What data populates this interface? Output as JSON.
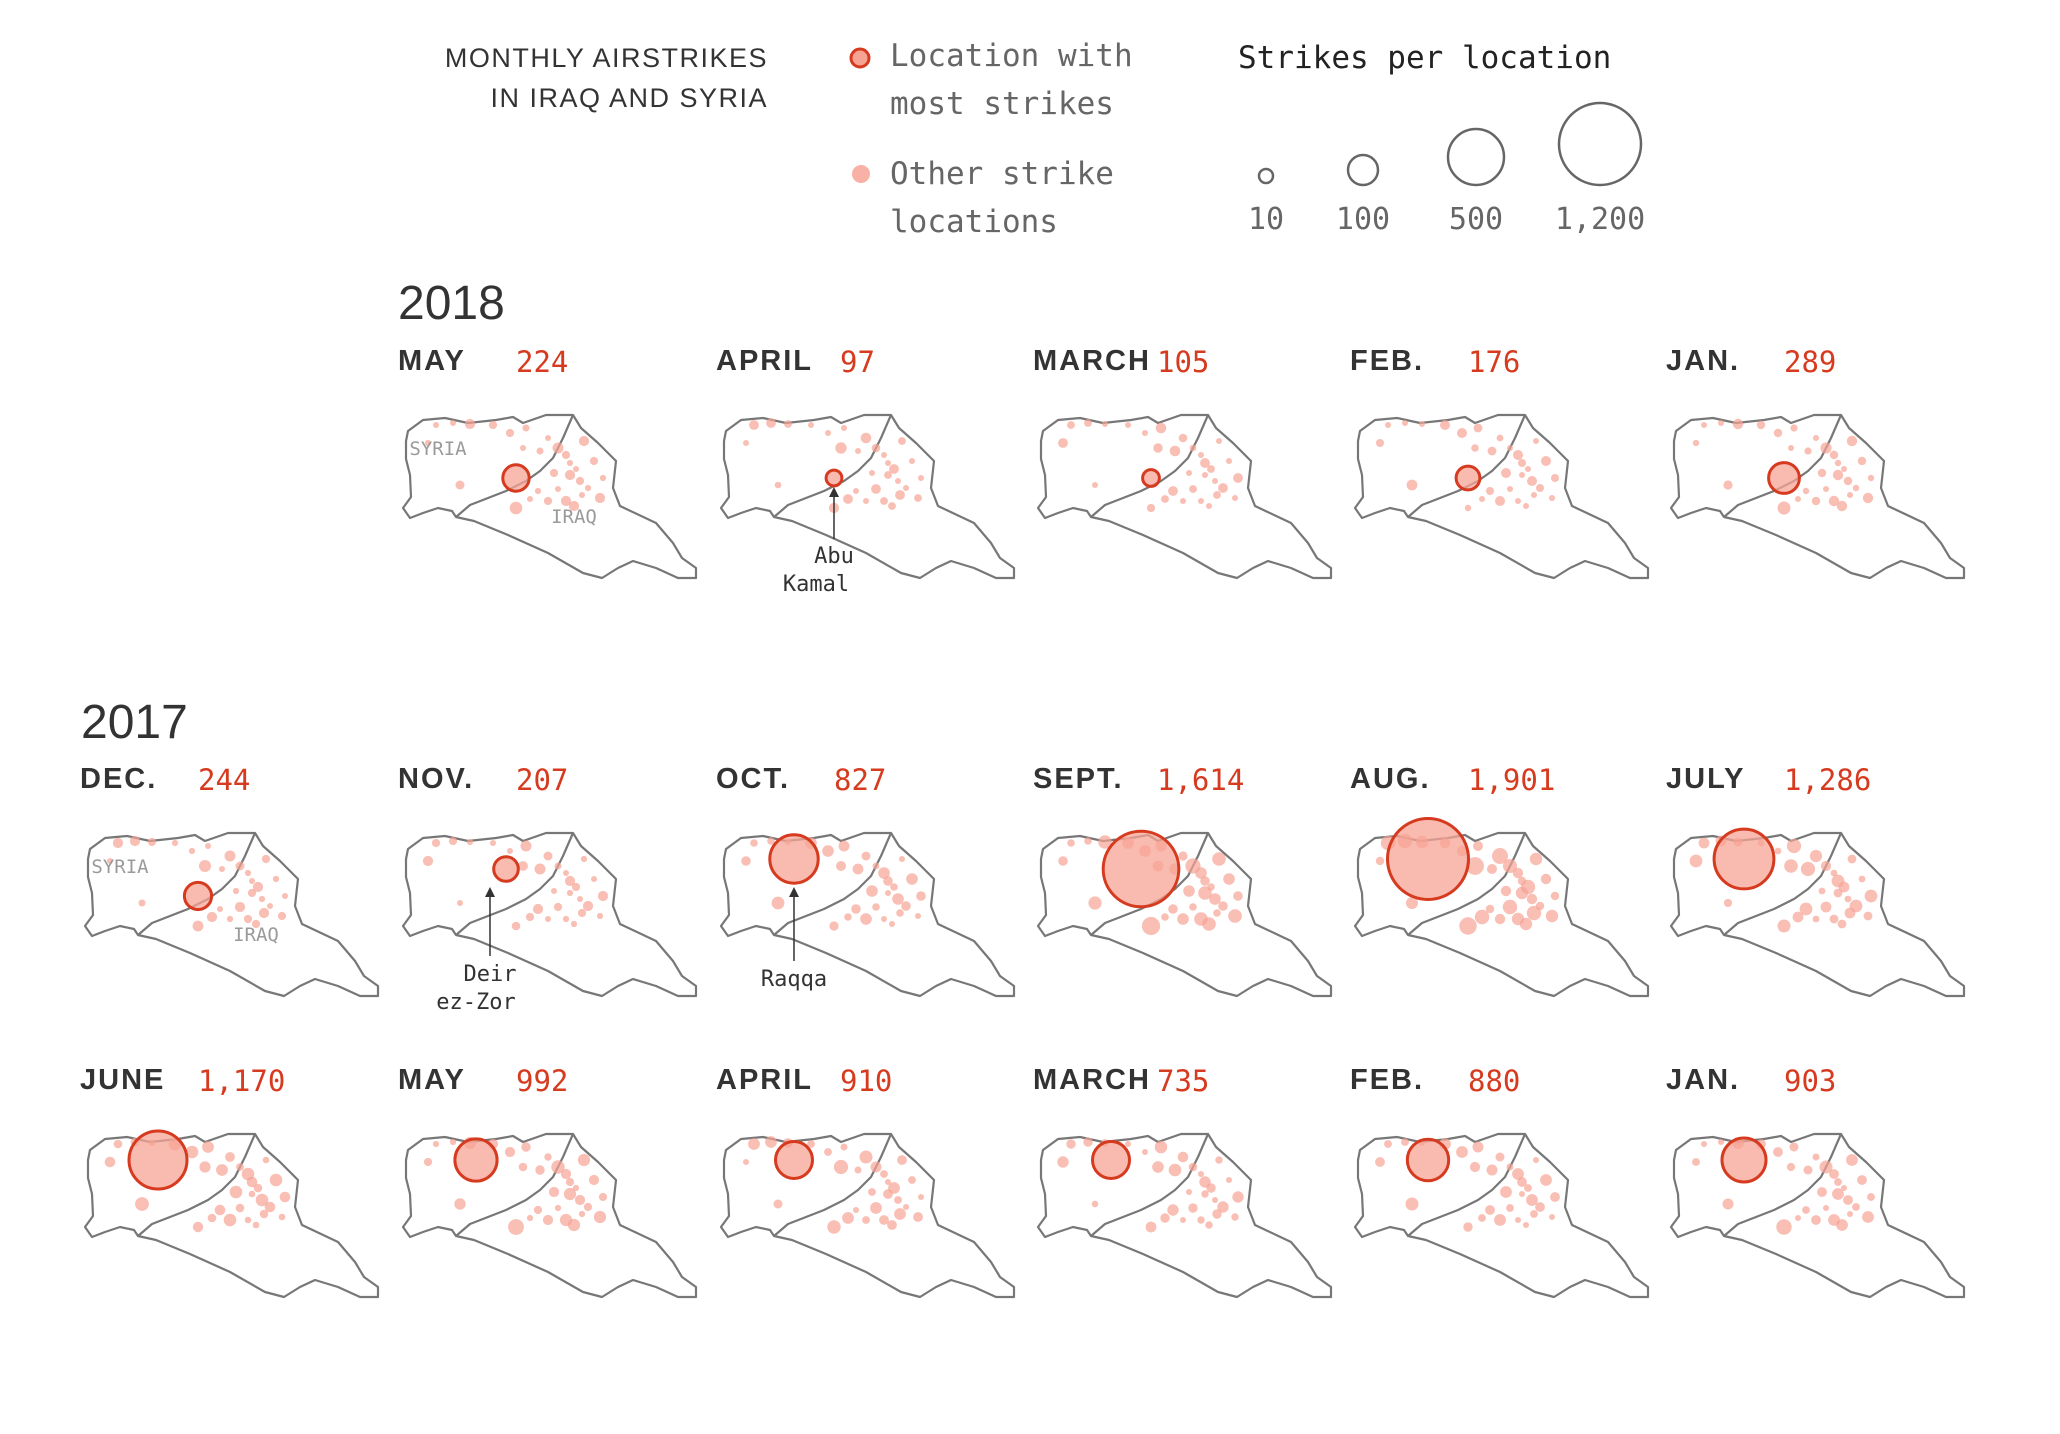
{
  "header": {
    "title_line1": "MONTHLY AIRSTRIKES",
    "title_line2": "IN IRAQ AND SYRIA"
  },
  "legend": {
    "most_line1": "Location with",
    "most_line2": "most strikes",
    "other_line1": "Other strike",
    "other_line2": "locations",
    "size_title": "Strikes per location",
    "sizes": [
      "10",
      "100",
      "500",
      "1,200"
    ]
  },
  "colors": {
    "accent": "#d63a1f",
    "bubble": "#f7a394",
    "outline": "#777777"
  },
  "labels": {
    "syria": "SYRIA",
    "iraq": "IRAQ"
  },
  "annotations": {
    "abu_kamal_1": "Abu",
    "abu_kamal_2": "Kamal",
    "deir_1": "Deir",
    "deir_2": "ez-Zor",
    "raqqa": "Raqqa"
  },
  "years": {
    "y2018": "2018",
    "y2017": "2017"
  },
  "months": [
    {
      "label": "MAY",
      "count": "224",
      "max_loc": "abu_kamal",
      "max_r": 0.3
    },
    {
      "label": "APRIL",
      "count": "97",
      "max_loc": "abu_kamal",
      "max_r": 0.18
    },
    {
      "label": "MARCH",
      "count": "105",
      "max_loc": "abu_kamal",
      "max_r": 0.19
    },
    {
      "label": "FEB.",
      "count": "176",
      "max_loc": "abu_kamal",
      "max_r": 0.27
    },
    {
      "label": "JAN.",
      "count": "289",
      "max_loc": "abu_kamal",
      "max_r": 0.35
    },
    {
      "label": "DEC.",
      "count": "244",
      "max_loc": "abu_kamal",
      "max_r": 0.31
    },
    {
      "label": "NOV.",
      "count": "207",
      "max_loc": "deir_ez_zor",
      "max_r": 0.28
    },
    {
      "label": "OCT.",
      "count": "827",
      "max_loc": "raqqa",
      "max_r": 0.55
    },
    {
      "label": "SEPT.",
      "count": "1,614",
      "max_loc": "deir_ez_zor",
      "max_r": 0.86
    },
    {
      "label": "AUG.",
      "count": "1,901",
      "max_loc": "raqqa",
      "max_r": 0.92
    },
    {
      "label": "JULY",
      "count": "1,286",
      "max_loc": "raqqa",
      "max_r": 0.68
    },
    {
      "label": "JUNE",
      "count": "1,170",
      "max_loc": "raqqa",
      "max_r": 0.66
    },
    {
      "label": "MAY",
      "count": "992",
      "max_loc": "raqqa",
      "max_r": 0.48
    },
    {
      "label": "APRIL",
      "count": "910",
      "max_loc": "raqqa",
      "max_r": 0.42
    },
    {
      "label": "MARCH",
      "count": "735",
      "max_loc": "raqqa",
      "max_r": 0.42
    },
    {
      "label": "FEB.",
      "count": "880",
      "max_loc": "raqqa",
      "max_r": 0.47
    },
    {
      "label": "JAN.",
      "count": "903",
      "max_loc": "raqqa",
      "max_r": 0.5
    }
  ]
}
